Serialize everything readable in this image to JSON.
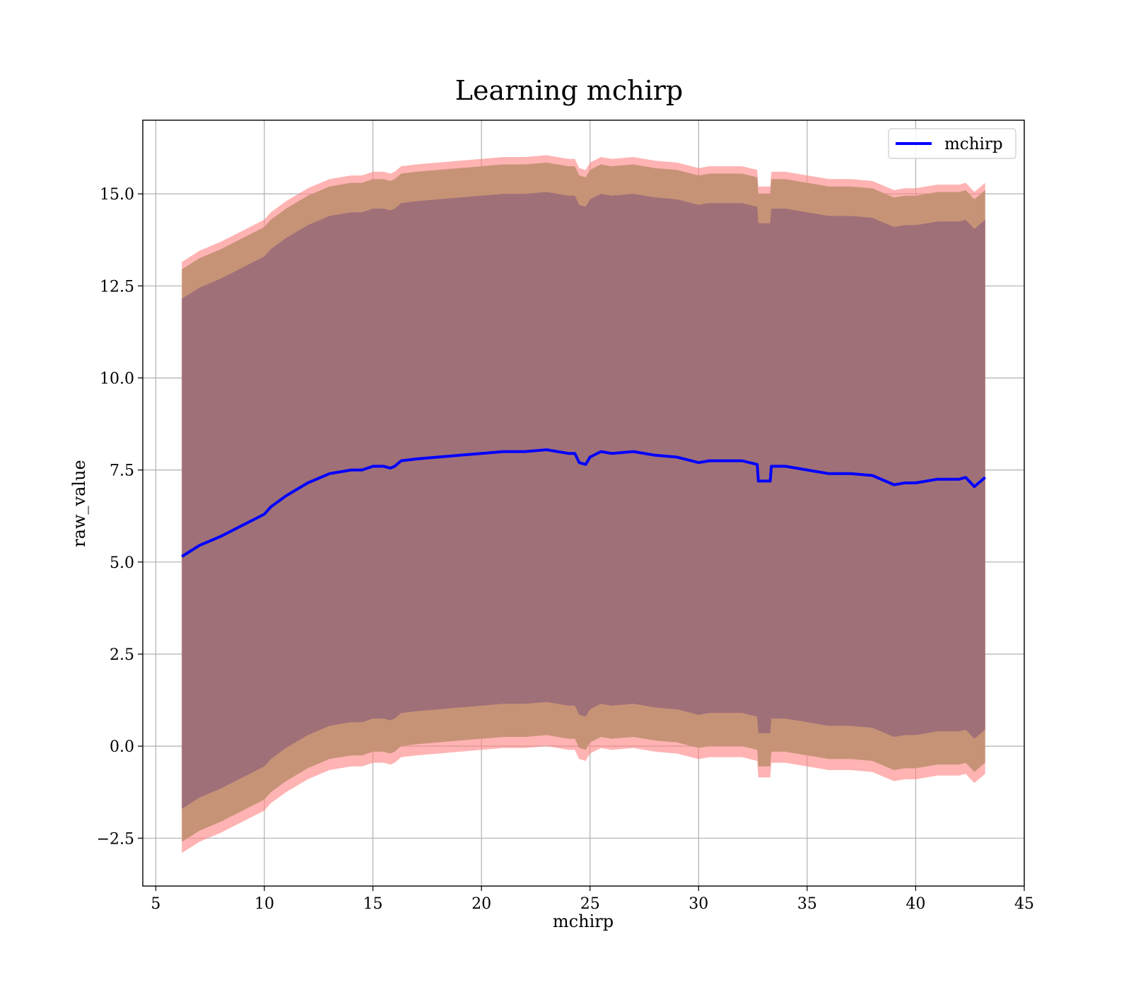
{
  "chart_data": {
    "type": "line",
    "title": "Learning mchirp",
    "xlabel": "mchirp",
    "ylabel": "raw_value",
    "xlim": [
      4.4,
      45
    ],
    "ylim": [
      -3.8,
      17.0
    ],
    "xticks": [
      5,
      10,
      15,
      20,
      25,
      30,
      35,
      40,
      45
    ],
    "xtick_labels": [
      "5",
      "10",
      "15",
      "20",
      "25",
      "30",
      "35",
      "40",
      "45"
    ],
    "yticks": [
      -2.5,
      0.0,
      2.5,
      5.0,
      7.5,
      10.0,
      12.5,
      15.0
    ],
    "ytick_labels": [
      "−2.5",
      "0.0",
      "2.5",
      "5.0",
      "7.5",
      "10.0",
      "12.5",
      "15.0"
    ],
    "grid": true,
    "legend": {
      "position": "top-right",
      "entries": [
        "mchirp"
      ]
    },
    "colors": {
      "line": "#0000ff",
      "outer_band": "#ff8080",
      "middle_band": "#c79377",
      "inner_band": "#a07078"
    },
    "series": [
      {
        "name": "mchirp",
        "x": [
          6.2,
          7,
          8,
          9,
          10,
          10.3,
          11,
          12,
          13,
          14,
          14.5,
          15,
          15.5,
          15.8,
          16,
          16.3,
          17,
          18,
          19,
          20,
          21,
          22,
          23,
          24,
          24.3,
          24.5,
          24.8,
          25,
          25.5,
          26,
          27,
          28,
          29,
          30,
          30.5,
          31,
          32,
          32.7,
          32.75,
          33.3,
          33.35,
          34,
          35,
          36,
          37,
          38,
          39,
          39.5,
          40,
          41,
          42,
          42.3,
          42.7,
          43.2
        ],
        "y": [
          5.15,
          5.45,
          5.7,
          6.0,
          6.3,
          6.5,
          6.8,
          7.15,
          7.4,
          7.5,
          7.5,
          7.6,
          7.6,
          7.55,
          7.6,
          7.75,
          7.8,
          7.85,
          7.9,
          7.95,
          8.0,
          8.0,
          8.05,
          7.95,
          7.95,
          7.7,
          7.65,
          7.85,
          8.0,
          7.95,
          8.0,
          7.9,
          7.85,
          7.7,
          7.75,
          7.75,
          7.75,
          7.65,
          7.2,
          7.2,
          7.6,
          7.6,
          7.5,
          7.4,
          7.4,
          7.35,
          7.1,
          7.15,
          7.15,
          7.25,
          7.25,
          7.3,
          7.05,
          7.3
        ],
        "inner_band": {
          "upper_offset": 7.0,
          "lower_offset": 6.85
        },
        "middle_band": {
          "upper_offset": 7.8,
          "lower_offset": 7.75
        },
        "outer_band": {
          "upper_offset": 8.0,
          "lower_offset": 8.05
        }
      }
    ]
  }
}
